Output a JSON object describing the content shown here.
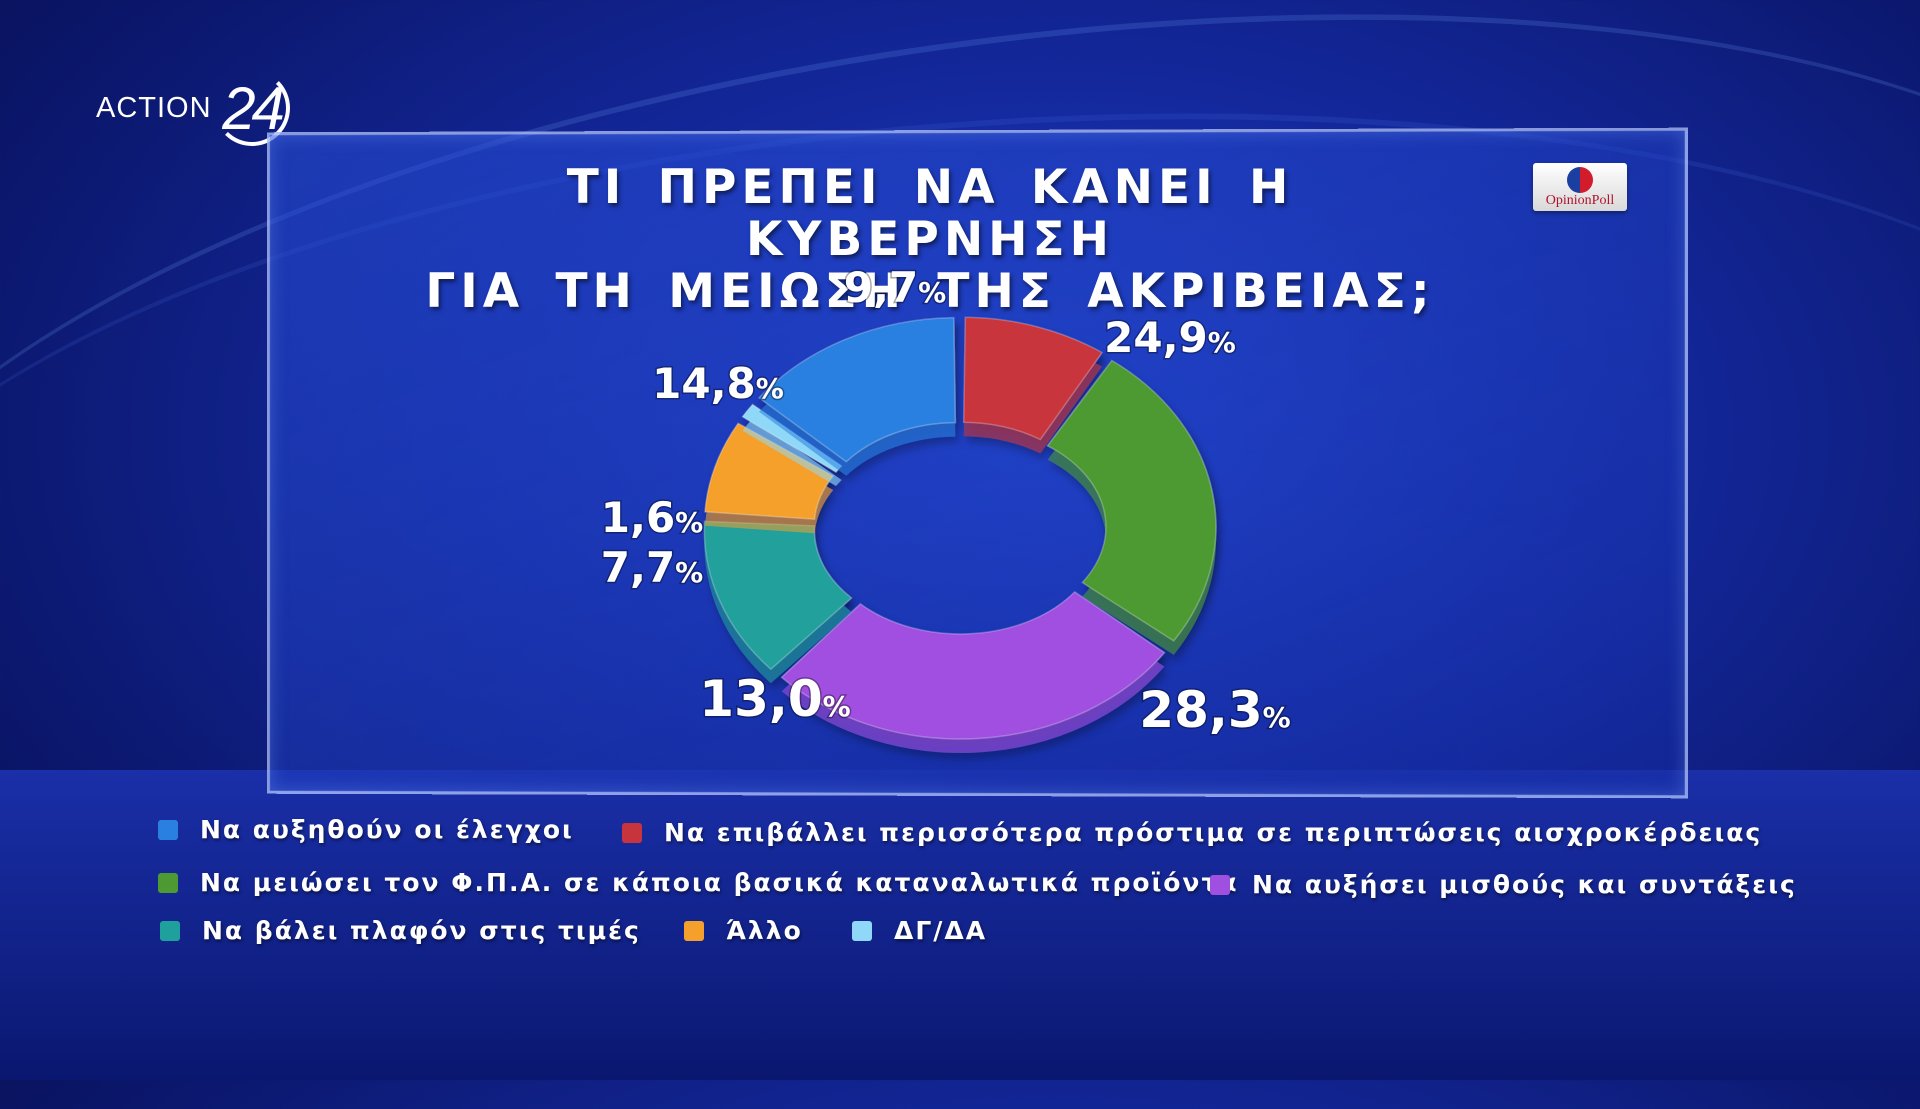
{
  "channel": {
    "logo_text": "ACTION",
    "logo_number": "24"
  },
  "badge": {
    "text": "OpinionPoll"
  },
  "chart_data": {
    "type": "pie",
    "title_lines": [
      "ΤΙ ΠΡΕΠΕΙ ΝΑ ΚΑΝΕΙ Η ΚΥΒΕΡΝΗΣΗ",
      "ΓΙΑ ΤΗ ΜΕΙΩΣΗ ΤΗΣ ΑΚΡΙΒΕΙΑΣ;"
    ],
    "unit": "%",
    "slices": [
      {
        "label": "Να επιβάλλει περισσότερα πρόστιμα σε περιπτώσεις αισχροκέρδειας",
        "value": 9.7,
        "display": "9,7",
        "color": "#c8343c"
      },
      {
        "label": "Να μειώσει τον Φ.Π.Α. σε κάποια βασικά καταναλωτικά προϊόντα",
        "value": 24.9,
        "display": "24,9",
        "color": "#4d9a32"
      },
      {
        "label": "Να αυξήσει μισθούς και συντάξεις",
        "value": 28.3,
        "display": "28,3",
        "color": "#a050e0"
      },
      {
        "label": "Να βάλει πλαφόν στις τιμές",
        "value": 13.0,
        "display": "13,0",
        "color": "#20a09c"
      },
      {
        "label": "Άλλο",
        "value": 7.7,
        "display": "7,7",
        "color": "#f5a02c"
      },
      {
        "label": "ΔΓ/ΔΑ",
        "value": 1.6,
        "display": "1,6",
        "color": "#8fd8f8"
      },
      {
        "label": "Να αυξηθούν οι έλεγχοι",
        "value": 14.8,
        "display": "14,8",
        "color": "#2a80e0"
      }
    ]
  },
  "legend": [
    {
      "label": "Να αυξηθούν οι έλεγχοι",
      "color": "#2a80e0"
    },
    {
      "label": "Να επιβάλλει περισσότερα πρόστιμα σε περιπτώσεις αισχροκέρδειας",
      "color": "#c8343c"
    },
    {
      "label": "Να μειώσει τον Φ.Π.Α. σε κάποια βασικά καταναλωτικά προϊόντα",
      "color": "#4d9a32"
    },
    {
      "label": "Να αυξήσει μισθούς και συντάξεις",
      "color": "#a050e0"
    },
    {
      "label": "Να βάλει πλαφόν στις τιμές",
      "color": "#20a09c"
    },
    {
      "label": "Άλλο",
      "color": "#f5a02c"
    },
    {
      "label": "ΔΓ/ΔΑ",
      "color": "#8fd8f8"
    }
  ]
}
